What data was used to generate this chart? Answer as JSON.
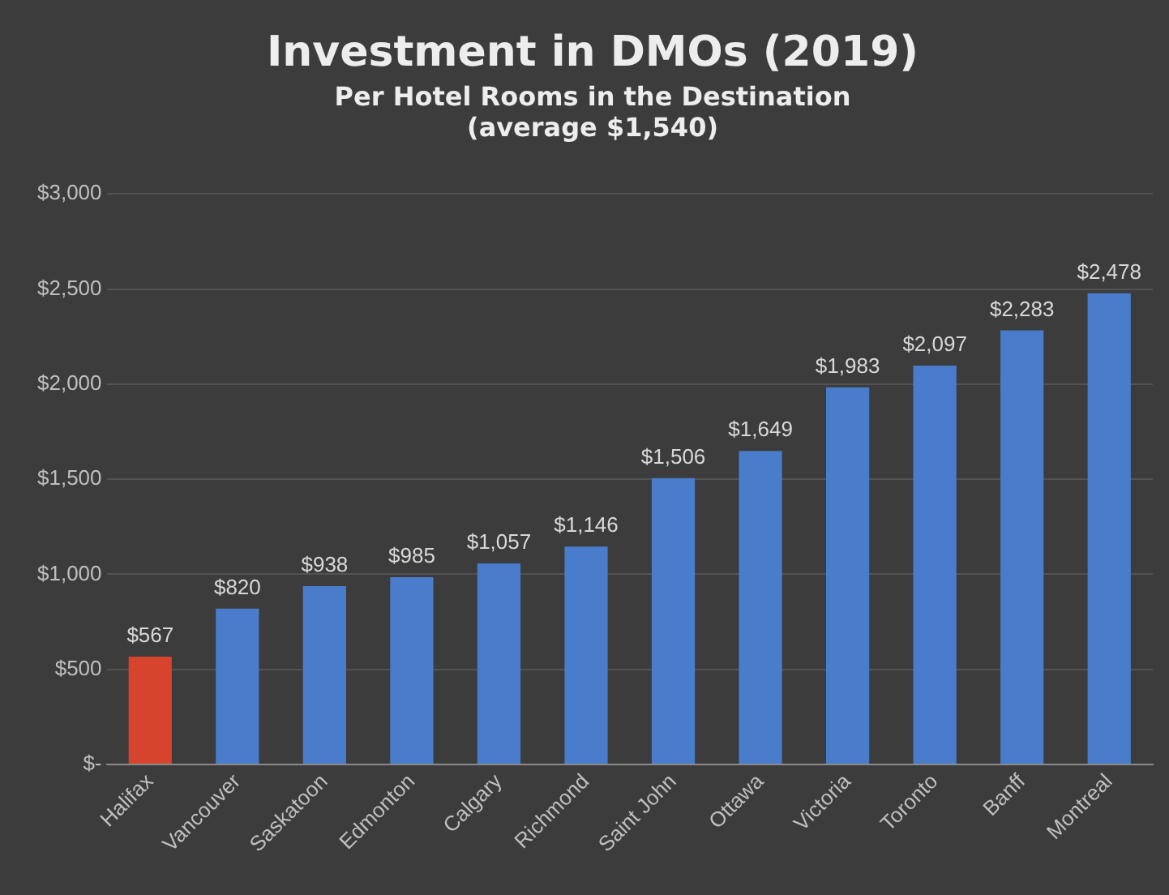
{
  "chart_data": {
    "type": "bar",
    "title": "Investment in DMOs (2019)",
    "subtitle": "Per Hotel Rooms in the Destination\n(average $1,540)",
    "categories": [
      "Halifax",
      "Vancouver",
      "Saskatoon",
      "Edmonton",
      "Calgary",
      "Richmond",
      "Saint John",
      "Ottawa",
      "Victoria",
      "Toronto",
      "Banff",
      "Montreal"
    ],
    "values": [
      567,
      820,
      938,
      985,
      1057,
      1146,
      1506,
      1649,
      1983,
      2097,
      2283,
      2478
    ],
    "value_labels": [
      "$567",
      "$820",
      "$938",
      "$985",
      "$1,057",
      "$1,146",
      "$1,506",
      "$1,649",
      "$1,983",
      "$2,097",
      "$2,283",
      "$2,478"
    ],
    "colors": [
      "#d6442e",
      "#4a7ccc",
      "#4a7ccc",
      "#4a7ccc",
      "#4a7ccc",
      "#4a7ccc",
      "#4a7ccc",
      "#4a7ccc",
      "#4a7ccc",
      "#4a7ccc",
      "#4a7ccc",
      "#4a7ccc"
    ],
    "ylim": [
      0,
      3000
    ],
    "yticks": [
      {
        "value": 0,
        "label": "$-"
      },
      {
        "value": 500,
        "label": "$500"
      },
      {
        "value": 1000,
        "label": "$1,000"
      },
      {
        "value": 1500,
        "label": "$1,500"
      },
      {
        "value": 2000,
        "label": "$2,000"
      },
      {
        "value": 2500,
        "label": "$2,500"
      },
      {
        "value": 3000,
        "label": "$3,000"
      }
    ],
    "grid": "y",
    "legend": false
  }
}
